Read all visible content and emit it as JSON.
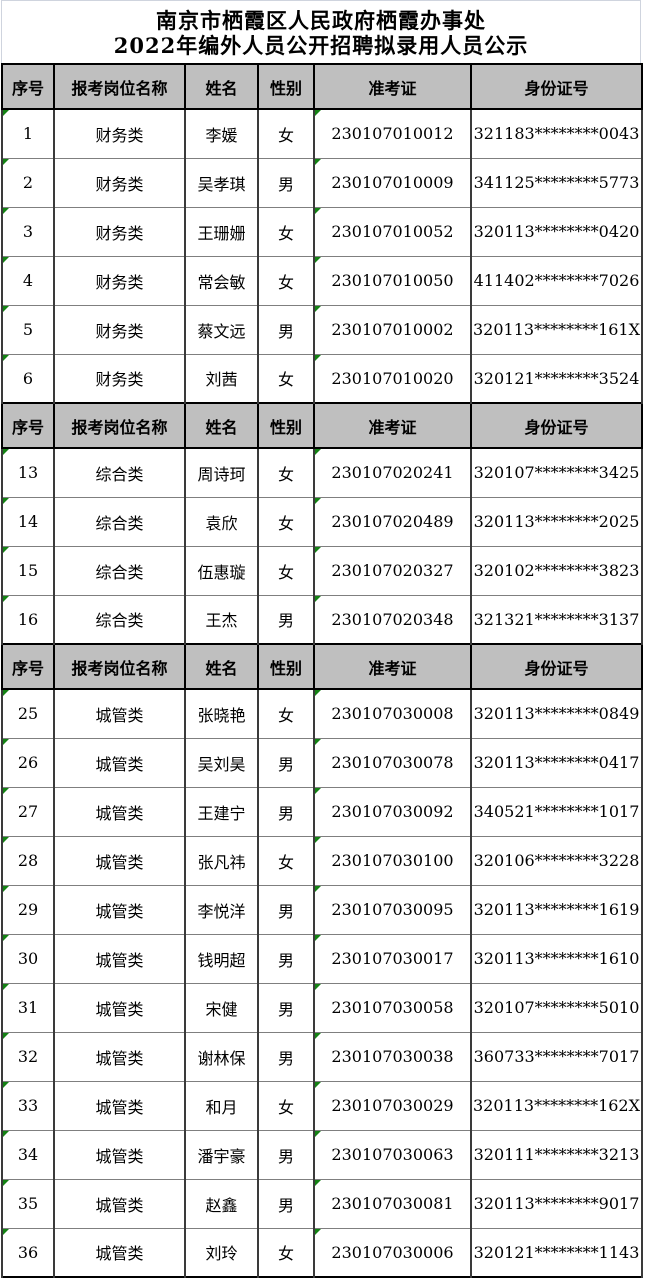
{
  "title": {
    "line1": "南京市栖霞区人民政府栖霞办事处",
    "line2": "2022年编外人员公开招聘拟录用人员公示"
  },
  "columns": [
    "序号",
    "报考岗位名称",
    "姓名",
    "性别",
    "准考证",
    "身份证号"
  ],
  "colors": {
    "header_bg": "#bfbfbf",
    "outer_border": "#000000",
    "row_line": "#7f7f7f",
    "title_grid_line": "#cfd4de",
    "flag_green": "#148214",
    "text": "#000000"
  },
  "sections": [
    {
      "rows": [
        [
          "1",
          "财务类",
          "李媛",
          "女",
          "230107010012",
          "321183********0043"
        ],
        [
          "2",
          "财务类",
          "吴孝琪",
          "男",
          "230107010009",
          "341125********5773"
        ],
        [
          "3",
          "财务类",
          "王珊姗",
          "女",
          "230107010052",
          "320113********0420"
        ],
        [
          "4",
          "财务类",
          "常会敏",
          "女",
          "230107010050",
          "411402********7026"
        ],
        [
          "5",
          "财务类",
          "蔡文远",
          "男",
          "230107010002",
          "320113********161X"
        ],
        [
          "6",
          "财务类",
          "刘茜",
          "女",
          "230107010020",
          "320121********3524"
        ]
      ]
    },
    {
      "rows": [
        [
          "13",
          "综合类",
          "周诗珂",
          "女",
          "230107020241",
          "320107********3425"
        ],
        [
          "14",
          "综合类",
          "袁欣",
          "女",
          "230107020489",
          "320113********2025"
        ],
        [
          "15",
          "综合类",
          "伍惠璇",
          "女",
          "230107020327",
          "320102********3823"
        ],
        [
          "16",
          "综合类",
          "王杰",
          "男",
          "230107020348",
          "321321********3137"
        ]
      ]
    },
    {
      "rows": [
        [
          "25",
          "城管类",
          "张晓艳",
          "女",
          "230107030008",
          "320113********0849"
        ],
        [
          "26",
          "城管类",
          "吴刘昊",
          "男",
          "230107030078",
          "320113********0417"
        ],
        [
          "27",
          "城管类",
          "王建宁",
          "男",
          "230107030092",
          "340521********1017"
        ],
        [
          "28",
          "城管类",
          "张凡祎",
          "女",
          "230107030100",
          "320106********3228"
        ],
        [
          "29",
          "城管类",
          "李悦洋",
          "男",
          "230107030095",
          "320113********1619"
        ],
        [
          "30",
          "城管类",
          "钱明超",
          "男",
          "230107030017",
          "320113********1610"
        ],
        [
          "31",
          "城管类",
          "宋健",
          "男",
          "230107030058",
          "320107********5010"
        ],
        [
          "32",
          "城管类",
          "谢林保",
          "男",
          "230107030038",
          "360733********7017"
        ],
        [
          "33",
          "城管类",
          "和月",
          "女",
          "230107030029",
          "320113********162X"
        ],
        [
          "34",
          "城管类",
          "潘宇豪",
          "男",
          "230107030063",
          "320111********3213"
        ],
        [
          "35",
          "城管类",
          "赵鑫",
          "男",
          "230107030081",
          "320113********9017"
        ],
        [
          "36",
          "城管类",
          "刘玲",
          "女",
          "230107030006",
          "320121********1143"
        ]
      ]
    }
  ]
}
